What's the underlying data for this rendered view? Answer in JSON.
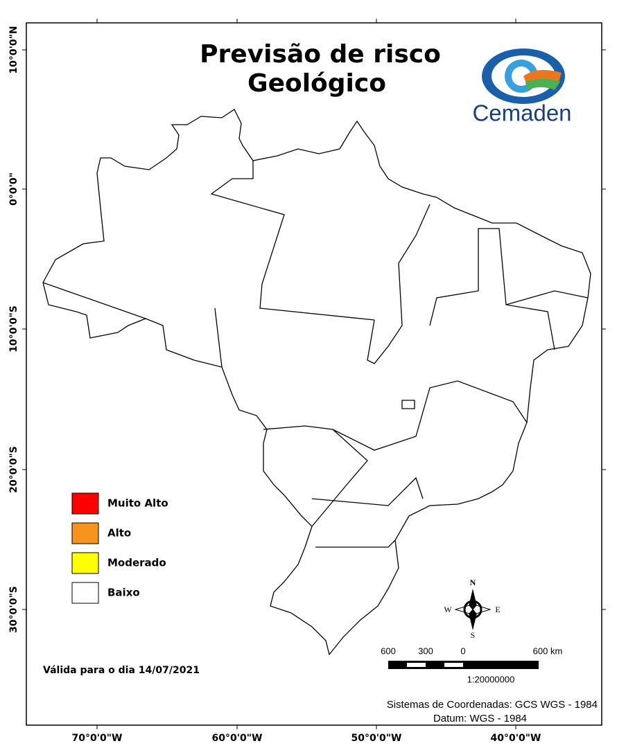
{
  "title": {
    "line1": "Previsão de risco",
    "line2": "Geológico"
  },
  "logo": {
    "text": "Cemaden"
  },
  "legend": {
    "items": [
      {
        "label": "Muito Alto",
        "color": "#ff0000"
      },
      {
        "label": "Alto",
        "color": "#f7941d"
      },
      {
        "label": "Moderado",
        "color": "#ffff00"
      },
      {
        "label": "Baixo",
        "color": "#ffffff"
      }
    ]
  },
  "validity": "Válida para o dia 14/07/2021",
  "compass": {
    "n": "N",
    "s": "S",
    "e": "E",
    "w": "W"
  },
  "scale_bar": {
    "labels": [
      "600",
      "300",
      "0",
      "600 km"
    ],
    "ratio": "1:20000000"
  },
  "credits": {
    "line1": "Sistemas de Coordenadas: GCS WGS - 1984",
    "line2": "Datum: WGS - 1984"
  },
  "axes": {
    "latitude": [
      "10°0'0\"N",
      "0°0'0\"",
      "10°0'0\"S",
      "20°0'0\"S",
      "30°0'0\"S"
    ],
    "longitude": [
      "70°0'0\"W",
      "60°0'0\"W",
      "50°0'0\"W",
      "40°0'0\"W"
    ]
  }
}
